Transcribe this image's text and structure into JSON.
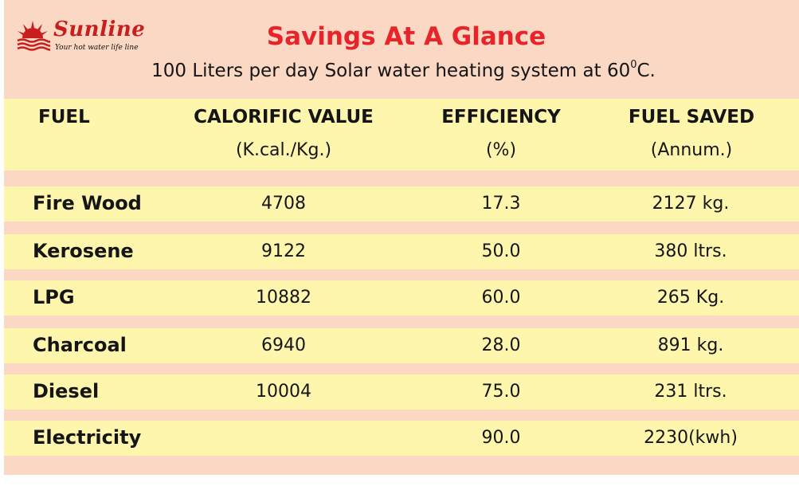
{
  "brand": {
    "name": "Sunline",
    "tagline": "Your hot water life line"
  },
  "title": "Savings At A Glance",
  "subtitle": {
    "text": "100 Liters per day Solar water heating system at 60",
    "degree_symbol": "0",
    "unit": "C."
  },
  "columns": [
    {
      "label": "FUEL",
      "sub": ""
    },
    {
      "label": "CALORIFIC VALUE",
      "sub": "(K.cal./Kg.)"
    },
    {
      "label": "EFFICIENCY",
      "sub": "(%)"
    },
    {
      "label": "FUEL SAVED",
      "sub": "(Annum.)"
    }
  ],
  "rows": [
    {
      "fuel": "Fire Wood",
      "calorific": "4708",
      "efficiency": "17.3",
      "saved": "2127 kg."
    },
    {
      "fuel": "Kerosene",
      "calorific": "9122",
      "efficiency": "50.0",
      "saved": "380 ltrs."
    },
    {
      "fuel": "LPG",
      "calorific": "10882",
      "efficiency": "60.0",
      "saved": "265 Kg."
    },
    {
      "fuel": "Charcoal",
      "calorific": "6940",
      "efficiency": "28.0",
      "saved": "891 kg."
    },
    {
      "fuel": "Diesel",
      "calorific": "10004",
      "efficiency": "75.0",
      "saved": "231 ltrs."
    },
    {
      "fuel": "Electricity",
      "calorific": "",
      "efficiency": "90.0",
      "saved": "2230(kwh)"
    }
  ],
  "colors": {
    "header_band": "#fad8c4",
    "row_yellow": "#fef6ad",
    "title_red": "#e8242a",
    "brand_red": "#c81e1e"
  }
}
